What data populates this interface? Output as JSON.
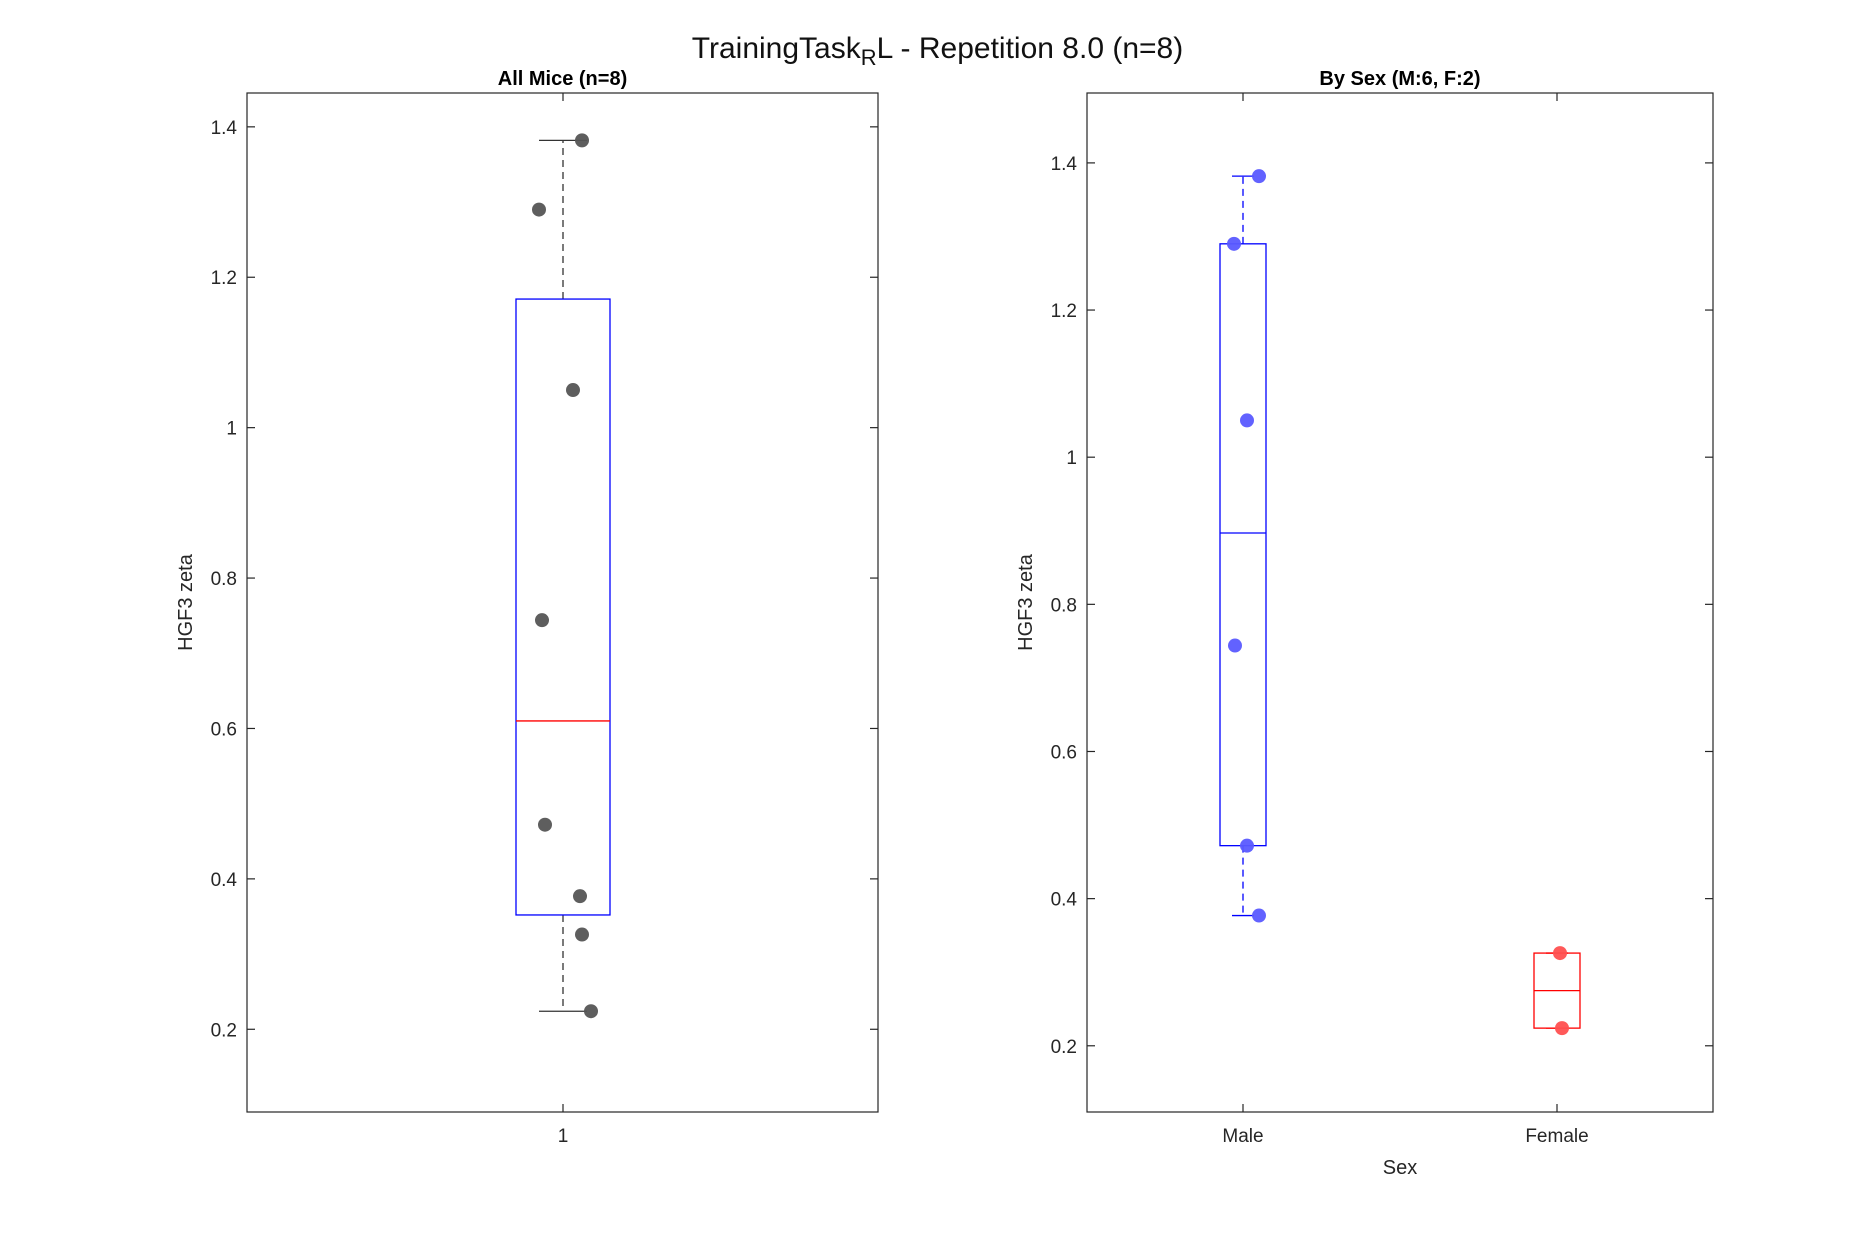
{
  "figure": {
    "title_main": "TrainingTask",
    "title_sub": "R",
    "title_rest": "L - Repetition 8.0 (n=8)"
  },
  "chart_data": [
    {
      "type": "box",
      "title": "All Mice (n=8)",
      "xlabel": "",
      "ylabel": "HGF3 zeta",
      "categories": [
        "1"
      ],
      "ylim": [
        0.09,
        1.445
      ],
      "yticks": [
        0.2,
        0.4,
        0.6,
        0.8,
        1,
        1.2,
        1.4
      ],
      "ytick_labels": [
        "0.2",
        "0.4",
        "0.6",
        "0.8",
        "1",
        "1.2",
        "1.4"
      ],
      "grid": false,
      "boxes": [
        {
          "category": "1",
          "q1": 0.352,
          "median": 0.61,
          "q3": 1.171,
          "whisker_low": 0.224,
          "whisker_high": 1.382,
          "box_color": "#0000ff",
          "median_color": "#ff0000",
          "whisker_color": "#333333"
        }
      ],
      "points": [
        {
          "category": "1",
          "y": 1.382
        },
        {
          "category": "1",
          "y": 1.29
        },
        {
          "category": "1",
          "y": 1.05
        },
        {
          "category": "1",
          "y": 0.744
        },
        {
          "category": "1",
          "y": 0.472
        },
        {
          "category": "1",
          "y": 0.377
        },
        {
          "category": "1",
          "y": 0.326
        },
        {
          "category": "1",
          "y": 0.224
        }
      ],
      "point_color": "#555555"
    },
    {
      "type": "box",
      "title": "By Sex (M:6, F:2)",
      "xlabel": "Sex",
      "ylabel": "HGF3 zeta",
      "categories": [
        "Male",
        "Female"
      ],
      "ylim": [
        0.11,
        1.495
      ],
      "yticks": [
        0.2,
        0.4,
        0.6,
        0.8,
        1,
        1.2,
        1.4
      ],
      "ytick_labels": [
        "0.2",
        "0.4",
        "0.6",
        "0.8",
        "1",
        "1.2",
        "1.4"
      ],
      "grid": false,
      "boxes": [
        {
          "category": "Male",
          "q1": 0.472,
          "median": 0.897,
          "q3": 1.29,
          "whisker_low": 0.377,
          "whisker_high": 1.382,
          "box_color": "#0000ff",
          "median_color": "#0000ff",
          "whisker_color": "#0000ff"
        },
        {
          "category": "Female",
          "q1": 0.224,
          "median": 0.275,
          "q3": 0.326,
          "whisker_low": 0.224,
          "whisker_high": 0.326,
          "box_color": "#ff0000",
          "median_color": "#ff0000",
          "whisker_color": "#ff0000"
        }
      ],
      "points": [
        {
          "category": "Male",
          "y": 1.382
        },
        {
          "category": "Male",
          "y": 1.29
        },
        {
          "category": "Male",
          "y": 1.05
        },
        {
          "category": "Male",
          "y": 0.744
        },
        {
          "category": "Male",
          "y": 0.472
        },
        {
          "category": "Male",
          "y": 0.377
        },
        {
          "category": "Female",
          "y": 0.326
        },
        {
          "category": "Female",
          "y": 0.224
        }
      ],
      "point_colors": {
        "Male": "#5a5aff",
        "Female": "#ff5050"
      }
    }
  ]
}
